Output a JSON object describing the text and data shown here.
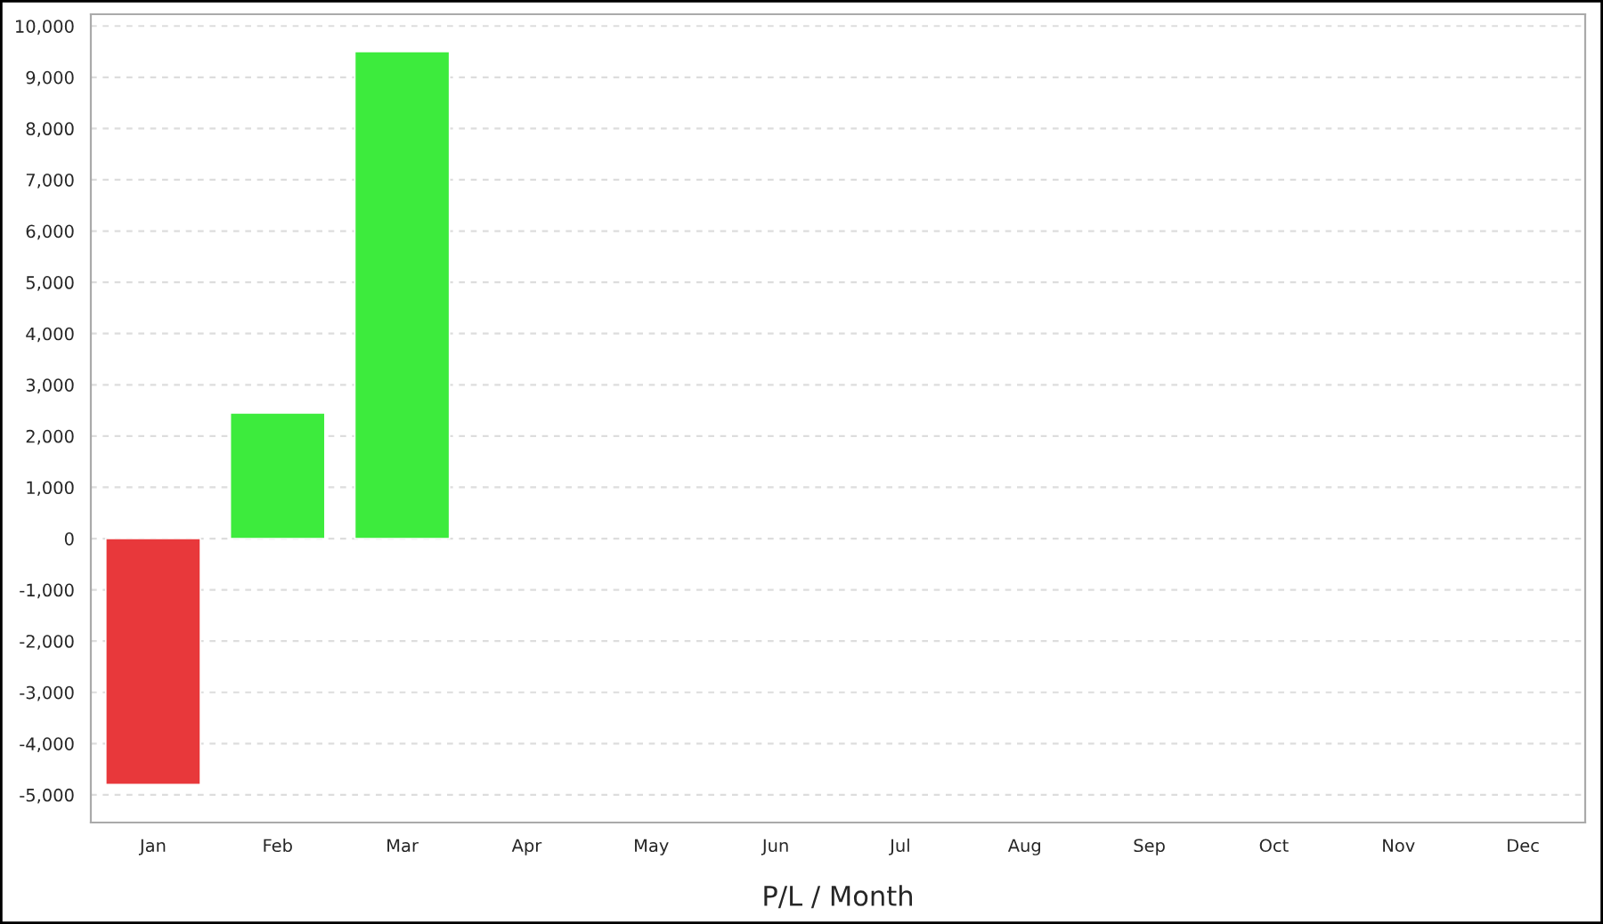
{
  "chart_data": {
    "type": "bar",
    "xlabel": "P/L / Month",
    "categories": [
      "Jan",
      "Feb",
      "Mar",
      "Apr",
      "May",
      "Jun",
      "Jul",
      "Aug",
      "Sep",
      "Oct",
      "Nov",
      "Dec"
    ],
    "values": [
      -4800,
      2450,
      9500,
      null,
      null,
      null,
      null,
      null,
      null,
      null,
      null,
      null
    ],
    "colors": [
      "#e8383b",
      "#3deb3d",
      "#3deb3d",
      "#3deb3d",
      "#3deb3d",
      "#3deb3d",
      "#3deb3d",
      "#3deb3d",
      "#3deb3d",
      "#3deb3d",
      "#3deb3d",
      "#3deb3d"
    ],
    "ylim": [
      -5540,
      10230
    ],
    "yticks": [
      {
        "value": -5000,
        "label": "-5,000"
      },
      {
        "value": -4000,
        "label": "-4,000"
      },
      {
        "value": -3000,
        "label": "-3,000"
      },
      {
        "value": -2000,
        "label": "-2,000"
      },
      {
        "value": -1000,
        "label": "-1,000"
      },
      0,
      {
        "value": 1000,
        "label": "1,000"
      },
      {
        "value": 2000,
        "label": "2,000"
      },
      {
        "value": 3000,
        "label": "3,000"
      },
      {
        "value": 4000,
        "label": "4,000"
      },
      {
        "value": 5000,
        "label": "5,000"
      },
      {
        "value": 6000,
        "label": "6,000"
      },
      {
        "value": 7000,
        "label": "7,000"
      },
      {
        "value": 8000,
        "label": "8,000"
      },
      {
        "value": 9000,
        "label": "9,000"
      },
      {
        "value": 10000,
        "label": "10,000"
      }
    ],
    "grid": "y",
    "legend": false
  }
}
